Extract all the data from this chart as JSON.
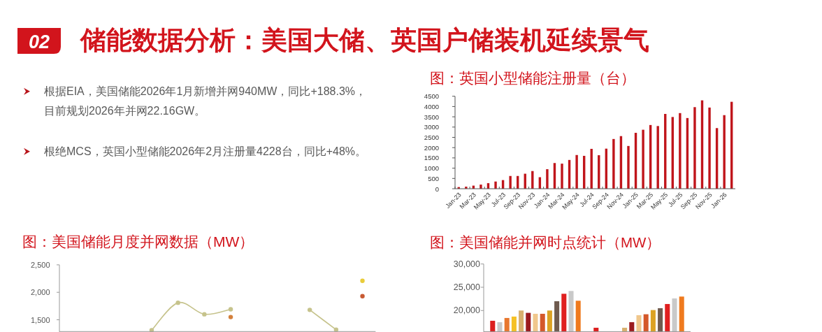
{
  "chart_data": [
    {
      "type": "other",
      "title": "储能数据分析：美国大储、英国户储装机延续景气",
      "annotations": [
        "02",
        "根据EIA，美国储能2026年1月新增并网940MW，同比+188.3%，目前规划2026年并网22.16GW。",
        "根绝MCS，英国小型储能2026年2月注册量4228台，同比+48%。"
      ]
    },
    {
      "type": "bar",
      "title": "图：英国小型储能注册量（台）",
      "categories": [
        "Jan-23",
        null,
        "Mar-23",
        null,
        "May-23",
        null,
        "Jul-23",
        null,
        "Sep-23",
        null,
        "Nov-23",
        null,
        "Jan-24",
        null,
        "Mar-24",
        null,
        "May-24",
        null,
        "Jul-24",
        null,
        "Sep-24",
        null,
        "Nov-24",
        null,
        "Jan-25",
        null,
        "Mar-25",
        null,
        "May-25",
        null,
        "Jul-25",
        null,
        "Sep-25",
        null,
        "Nov-25",
        null,
        "Jan-26",
        null
      ],
      "values": [
        80,
        100,
        150,
        200,
        270,
        350,
        420,
        620,
        620,
        730,
        860,
        560,
        950,
        1250,
        1220,
        1400,
        1640,
        1600,
        1940,
        1630,
        1950,
        2420,
        2560,
        2080,
        2720,
        2870,
        3100,
        3050,
        3640,
        3490,
        3680,
        3440,
        3970,
        4300,
        3950,
        2950,
        3580,
        4230
      ],
      "color": "#c0151b",
      "ylim": [
        0,
        4500
      ],
      "yticks": [
        0,
        500,
        1000,
        1500,
        2000,
        2500,
        3000,
        3500,
        4000,
        4500
      ]
    },
    {
      "type": "line",
      "title": "图：美国储能月度并网数据（MW）",
      "categories": [
        null,
        null,
        null,
        null,
        null,
        null,
        null,
        null,
        null,
        null,
        null,
        null
      ],
      "series": [
        {
          "color": "#c6c38c",
          "values": [
            null,
            null,
            null,
            1310,
            1810,
            1600,
            1690,
            null,
            null,
            1680,
            1320,
            null
          ]
        },
        {
          "color": "#d4803c",
          "values": [
            null,
            null,
            null,
            null,
            null,
            null,
            1550,
            null,
            null,
            null,
            null,
            null
          ]
        },
        {
          "color": "#e9cc3a",
          "values": [
            null,
            null,
            null,
            null,
            null,
            null,
            null,
            null,
            null,
            null,
            null,
            2210
          ]
        },
        {
          "color": "#c85a32",
          "values": [
            null,
            null,
            null,
            null,
            null,
            null,
            null,
            null,
            null,
            null,
            null,
            1930
          ]
        }
      ],
      "ylim": [
        1280,
        2500
      ],
      "yticks": [
        {
          "value": 1500,
          "label": "1,500"
        },
        {
          "value": 2000,
          "label": "2,000"
        },
        {
          "value": 2500,
          "label": "2,500"
        }
      ],
      "marker": "circle"
    },
    {
      "type": "bar",
      "title": "图：美国储能并网时点统计（MW）",
      "categories": [
        null,
        null
      ],
      "series": [
        {
          "color": "#dc1e1e",
          "values": [
            17800,
            16300
          ]
        },
        {
          "color": "#c8c8c8",
          "values": [
            17500,
            null
          ]
        },
        {
          "color": "#e8772e",
          "values": [
            18400,
            null
          ]
        },
        {
          "color": "#f5c125",
          "values": [
            18700,
            null
          ]
        },
        {
          "color": "#d8b06e",
          "values": [
            20000,
            16300
          ]
        },
        {
          "color": "#9b1b1f",
          "values": [
            19500,
            17500
          ]
        },
        {
          "color": "#f0c78c",
          "values": [
            19300,
            19000
          ]
        },
        {
          "color": "#d4582a",
          "values": [
            19300,
            19200
          ]
        },
        {
          "color": "#dca224",
          "values": [
            20000,
            20100
          ]
        },
        {
          "color": "#6f5b4f",
          "values": [
            22000,
            20500
          ]
        },
        {
          "color": "#e01f1f",
          "values": [
            23600,
            21400
          ]
        },
        {
          "color": "#c9c9c9",
          "values": [
            24200,
            22600
          ]
        },
        {
          "color": "#ef7a1e",
          "values": [
            22100,
            23000
          ]
        }
      ],
      "ylim": [
        15400,
        30000
      ],
      "yticks": [
        {
          "value": 20000,
          "label": "20,000"
        },
        {
          "value": 25000,
          "label": "25,000"
        },
        {
          "value": 30000,
          "label": "30,000"
        }
      ]
    }
  ]
}
